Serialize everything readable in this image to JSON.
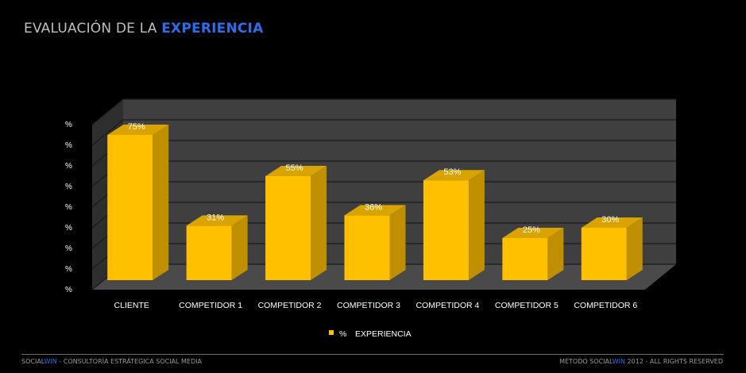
{
  "slide": {
    "title_prefix": "EVALUACIÓN DE LA ",
    "title_accent": "EXPERIENCIA"
  },
  "chart_data": {
    "type": "bar",
    "categories": [
      "CLIENTE",
      "COMPETIDOR 1",
      "COMPETIDOR 2",
      "COMPETIDOR 3",
      "COMPETIDOR 4",
      "COMPETIDOR 5",
      "COMPETIDOR 6"
    ],
    "series": [
      {
        "name": "% EXPERIENCIA",
        "values": [
          75,
          31,
          55,
          36,
          53,
          25,
          30
        ]
      }
    ],
    "data_labels": [
      "75%",
      "31%",
      "55%",
      "36%",
      "53%",
      "25%",
      "30%"
    ],
    "legend": {
      "marker": "%",
      "label": "EXPERIENCIA",
      "position": "bottom"
    },
    "ylim": [
      0,
      80
    ],
    "y_tick_count": 9,
    "y_tick_label": "%",
    "grid": true,
    "style_3d": true,
    "colors": {
      "bar_front": "#ffc000",
      "bar_side": "#bf8f00",
      "bar_top": "#d9a400",
      "wall": "#3f3f3f",
      "floor": "#4a4a4a",
      "grid": "#1a1a1a",
      "text": "#ffffff"
    }
  },
  "footer": {
    "left_brand_a": "SOCIAL",
    "left_brand_b": "WIN",
    "left_rest": " - CONSULTORÍA ESTRÁTEGICA SOCIAL MEDIA",
    "right_prefix": "MÉTODO ",
    "right_brand_a": "SOCIAL",
    "right_brand_b": "WIN",
    "right_rest": " 2012 - ALL RIGHTS RESERVED"
  }
}
